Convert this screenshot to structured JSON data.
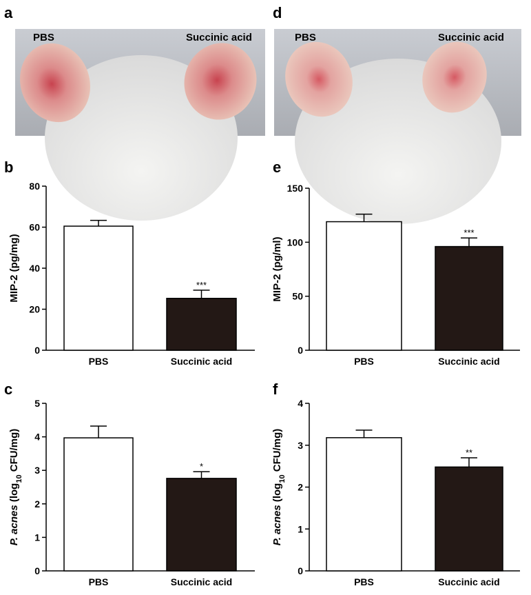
{
  "photos": [
    {
      "panel": "a",
      "labels": [
        "PBS",
        "Succinic acid"
      ]
    },
    {
      "panel": "d",
      "labels": [
        "PBS",
        "Succinic acid"
      ]
    }
  ],
  "chart_data": [
    {
      "type": "bar",
      "panel": "b",
      "y_label": [
        "MIP-2 (pg/mg)"
      ],
      "categories": [
        "PBS",
        "Succinic acid"
      ],
      "values": [
        60.5,
        25.3
      ],
      "errors": [
        2.8,
        4.0
      ],
      "annotations": [
        null,
        "***"
      ],
      "colors": [
        "#ffffff",
        "#231815"
      ],
      "edge_color": "#000000",
      "ylim": [
        0,
        80
      ],
      "yticks": [
        0,
        20,
        40,
        60,
        80
      ]
    },
    {
      "type": "bar",
      "panel": "e",
      "y_label": [
        "MIP-2 (pg/ml)"
      ],
      "categories": [
        "PBS",
        "Succinic acid"
      ],
      "values": [
        119,
        96
      ],
      "errors": [
        7,
        8
      ],
      "annotations": [
        null,
        "***"
      ],
      "colors": [
        "#ffffff",
        "#231815"
      ],
      "edge_color": "#000000",
      "ylim": [
        0,
        150
      ],
      "yticks": [
        0,
        50,
        100,
        150
      ]
    },
    {
      "type": "bar",
      "panel": "c",
      "y_label": [
        "P. acnes",
        " (log",
        "10",
        " CFU/mg)"
      ],
      "categories": [
        "PBS",
        "Succinic acid"
      ],
      "values": [
        3.97,
        2.76
      ],
      "errors": [
        0.35,
        0.2
      ],
      "annotations": [
        null,
        "*"
      ],
      "colors": [
        "#ffffff",
        "#231815"
      ],
      "edge_color": "#000000",
      "ylim": [
        0,
        5
      ],
      "yticks": [
        0,
        1,
        2,
        3,
        4,
        5
      ]
    },
    {
      "type": "bar",
      "panel": "f",
      "y_label": [
        "P. acnes",
        " (log",
        "10",
        " CFU/mg)"
      ],
      "categories": [
        "PBS",
        "Succinic acid"
      ],
      "values": [
        3.18,
        2.48
      ],
      "errors": [
        0.18,
        0.22
      ],
      "annotations": [
        null,
        "**"
      ],
      "colors": [
        "#ffffff",
        "#231815"
      ],
      "edge_color": "#000000",
      "ylim": [
        0,
        4
      ],
      "yticks": [
        0,
        1,
        2,
        3,
        4
      ]
    }
  ]
}
